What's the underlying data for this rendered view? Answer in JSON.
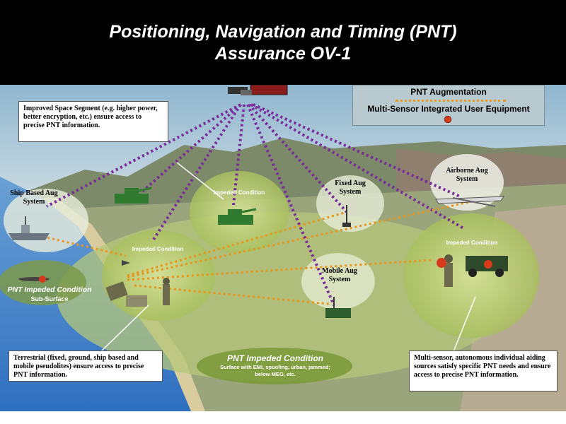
{
  "title": {
    "line1": "Positioning, Navigation and Timing (PNT)",
    "line2": "Assurance OV-1"
  },
  "legend": {
    "augmentation": "PNT Augmentation",
    "multi_sensor": "Multi-Sensor Integrated User Equipment"
  },
  "callouts": {
    "space_segment": "Improved Space Segment (e.g. higher power, better encryption, etc.) ensure access to precise PNT information.",
    "terrestrial": "Terrestrial (fixed, ground, ship based and mobile pseudolites) ensure access to precise PNT information.",
    "multi_sensor": "Multi-sensor, autonomous individual aiding sources satisfy specific PNT needs and ensure access to precise PNT information."
  },
  "systems": {
    "ship": "Ship Based Aug System",
    "fixed": "Fixed Aug System",
    "airborne": "Airborne Aug System",
    "mobile": "Mobile Aug System"
  },
  "impeded": {
    "label": "Impeded Condition",
    "sub_surface_title": "PNT Impeded Condition",
    "sub_surface_sub": "Sub-Surface",
    "surface_title": "PNT Impeded Condition",
    "surface_sub": "Surface with EMI, spoofing, urban, jammed; below MEO, etc."
  },
  "colors": {
    "purple_link": "#7a2a9a",
    "orange_link": "#e8961c",
    "dome_green": "#b7c972",
    "sea": "#4a86c8",
    "title_bg": "#000000"
  }
}
